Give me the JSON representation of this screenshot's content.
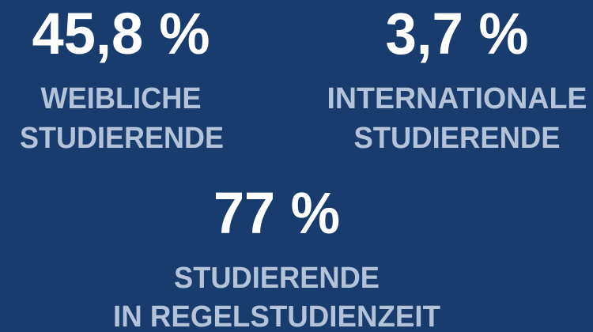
{
  "stats": [
    {
      "value": "45,8 %",
      "label": [
        "WEIBLICHE",
        "STUDIERENDE"
      ]
    },
    {
      "value": "3,7 %",
      "label": [
        "INTERNATIONALE",
        "STUDIERENDE"
      ]
    },
    {
      "value": "77 %",
      "label": [
        "STUDIERENDE",
        "IN REGELSTUDIENZEIT"
      ]
    }
  ]
}
